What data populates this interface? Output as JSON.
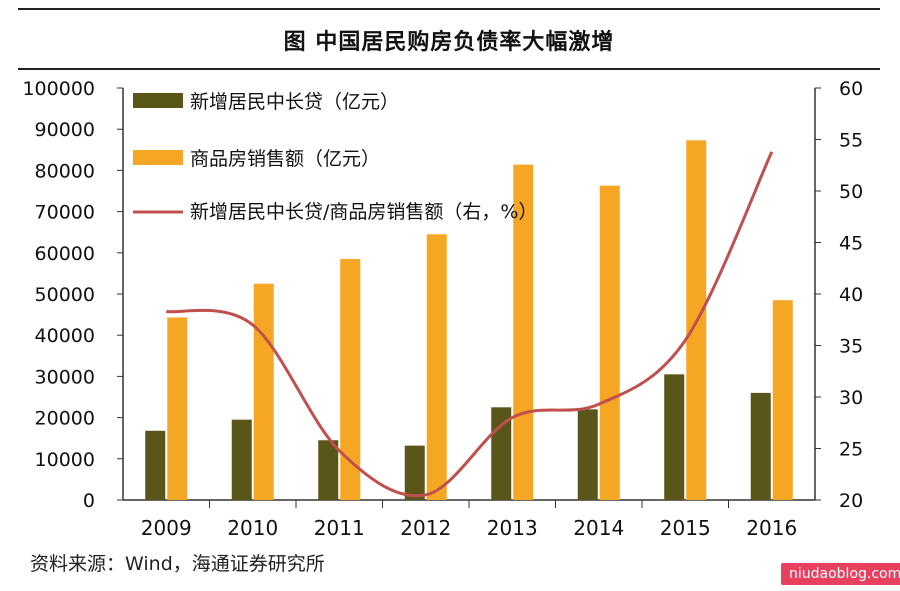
{
  "title": "图  中国居民购房负债率大幅激增",
  "source": "资料来源：Wind，海通证券研究所",
  "watermark": "niudaoblog.com",
  "colors": {
    "loan_bar": "#5a5519",
    "sales_bar": "#f5a623",
    "ratio_line": "#c0504d",
    "axis": "#333333"
  },
  "chart_data": {
    "type": "bar",
    "categories": [
      "2009",
      "2010",
      "2011",
      "2012",
      "2013",
      "2014",
      "2015",
      "2016"
    ],
    "series": [
      {
        "name": "新增居民中长贷（亿元）",
        "type": "bar",
        "axis": "left",
        "values": [
          16800,
          19500,
          14500,
          13200,
          22500,
          22000,
          30500,
          26000
        ]
      },
      {
        "name": "商品房销售额（亿元）",
        "type": "bar",
        "axis": "left",
        "values": [
          44300,
          52500,
          58500,
          64500,
          81400,
          76300,
          87300,
          48500
        ]
      },
      {
        "name": "新增居民中长贷/商品房销售额（右，%）",
        "type": "line",
        "axis": "right",
        "values": [
          38.3,
          37.0,
          24.8,
          20.5,
          28.0,
          29.3,
          35.5,
          53.8
        ]
      }
    ],
    "y_left": {
      "min": 0,
      "max": 100000,
      "ticks": [
        0,
        10000,
        20000,
        30000,
        40000,
        50000,
        60000,
        70000,
        80000,
        90000,
        100000
      ]
    },
    "y_right": {
      "min": 20,
      "max": 60,
      "ticks": [
        20,
        25,
        30,
        35,
        40,
        45,
        50,
        55,
        60
      ]
    },
    "legend_position": "top-left",
    "grid": false
  }
}
